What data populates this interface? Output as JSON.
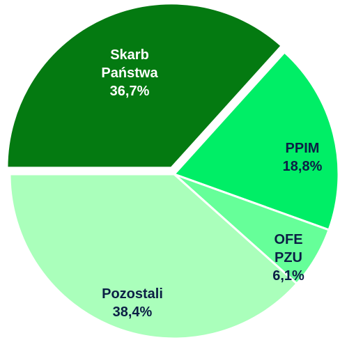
{
  "chart_data": {
    "type": "pie",
    "categories": [
      "Skarb\nPaństwa",
      "PPIM",
      "OFE PZU",
      "Pozostali"
    ],
    "values": [
      36.7,
      18.8,
      6.1,
      38.4
    ],
    "value_labels": [
      "36,7%",
      "18,8%",
      "6,1%",
      "38,4%"
    ],
    "colors": [
      "#047a11",
      "#00ee66",
      "#66ff99",
      "#aaffbb"
    ],
    "exploded": [
      true,
      false,
      false,
      false
    ]
  }
}
